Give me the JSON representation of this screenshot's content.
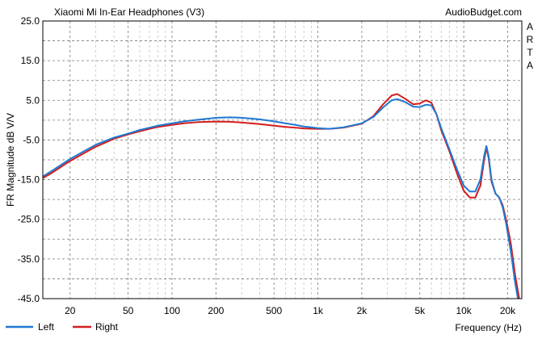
{
  "chart_data": {
    "type": "line",
    "title": "Xiaomi Mi In-Ear Headphones (V3)",
    "watermark": "AudioBudget.com",
    "side_label": [
      "A",
      "R",
      "T",
      "A"
    ],
    "xlabel": "Frequency (Hz)",
    "ylabel": "FR Magnitude dB V/V",
    "x_scale": "log",
    "xlim": [
      13,
      25000
    ],
    "ylim": [
      -45,
      25
    ],
    "grid": true,
    "legend_position": "bottom-left",
    "x_ticks": [
      {
        "value": 20,
        "label": "20"
      },
      {
        "value": 50,
        "label": "50"
      },
      {
        "value": 100,
        "label": "100"
      },
      {
        "value": 200,
        "label": "200"
      },
      {
        "value": 500,
        "label": "500"
      },
      {
        "value": 1000,
        "label": "1k"
      },
      {
        "value": 2000,
        "label": "2k"
      },
      {
        "value": 5000,
        "label": "5k"
      },
      {
        "value": 10000,
        "label": "10k"
      },
      {
        "value": 20000,
        "label": "20k"
      }
    ],
    "y_ticks": [
      {
        "value": 25,
        "label": "25.0"
      },
      {
        "value": 15,
        "label": "15.0"
      },
      {
        "value": 5,
        "label": "5.0"
      },
      {
        "value": -5,
        "label": "-5.0"
      },
      {
        "value": -15,
        "label": "-15.0"
      },
      {
        "value": -25,
        "label": "-25.0"
      },
      {
        "value": -35,
        "label": "-35.0"
      },
      {
        "value": -45,
        "label": "-45.0"
      }
    ],
    "colors": {
      "left": "#1e78d2",
      "right": "#d41c1c",
      "background": "#ffffff",
      "grid": "#808080"
    },
    "series": [
      {
        "name": "Left",
        "color": "#1e78d2",
        "points": [
          [
            13,
            -14.2
          ],
          [
            15,
            -12.8
          ],
          [
            20,
            -9.8
          ],
          [
            25,
            -7.8
          ],
          [
            30,
            -6.2
          ],
          [
            40,
            -4.4
          ],
          [
            50,
            -3.4
          ],
          [
            60,
            -2.5
          ],
          [
            70,
            -1.9
          ],
          [
            80,
            -1.4
          ],
          [
            100,
            -0.8
          ],
          [
            120,
            -0.3
          ],
          [
            150,
            0.1
          ],
          [
            180,
            0.4
          ],
          [
            200,
            0.6
          ],
          [
            250,
            0.7
          ],
          [
            300,
            0.6
          ],
          [
            400,
            0.2
          ],
          [
            500,
            -0.3
          ],
          [
            600,
            -0.8
          ],
          [
            700,
            -1.2
          ],
          [
            800,
            -1.6
          ],
          [
            1000,
            -2.0
          ],
          [
            1200,
            -2.2
          ],
          [
            1500,
            -1.8
          ],
          [
            2000,
            -0.8
          ],
          [
            2400,
            0.8
          ],
          [
            2800,
            3.2
          ],
          [
            3200,
            5.0
          ],
          [
            3500,
            5.3
          ],
          [
            4000,
            4.5
          ],
          [
            4500,
            3.4
          ],
          [
            5000,
            3.3
          ],
          [
            5500,
            3.9
          ],
          [
            6000,
            3.7
          ],
          [
            6500,
            1.5
          ],
          [
            7000,
            -2.0
          ],
          [
            8000,
            -7.5
          ],
          [
            9000,
            -12.5
          ],
          [
            10000,
            -16.5
          ],
          [
            11000,
            -18.0
          ],
          [
            12000,
            -18.0
          ],
          [
            13000,
            -15.0
          ],
          [
            13800,
            -9.0
          ],
          [
            14300,
            -6.5
          ],
          [
            14800,
            -9.0
          ],
          [
            15500,
            -15.0
          ],
          [
            16500,
            -18.5
          ],
          [
            17500,
            -19.5
          ],
          [
            18500,
            -22.0
          ],
          [
            19500,
            -26.0
          ],
          [
            21000,
            -33.0
          ],
          [
            22500,
            -41.0
          ],
          [
            23500,
            -45.0
          ]
        ]
      },
      {
        "name": "Right",
        "color": "#d41c1c",
        "points": [
          [
            13,
            -14.6
          ],
          [
            15,
            -13.3
          ],
          [
            20,
            -10.3
          ],
          [
            25,
            -8.3
          ],
          [
            30,
            -6.7
          ],
          [
            40,
            -4.7
          ],
          [
            50,
            -3.6
          ],
          [
            60,
            -2.8
          ],
          [
            70,
            -2.2
          ],
          [
            80,
            -1.7
          ],
          [
            100,
            -1.2
          ],
          [
            120,
            -0.8
          ],
          [
            150,
            -0.5
          ],
          [
            180,
            -0.4
          ],
          [
            200,
            -0.35
          ],
          [
            250,
            -0.4
          ],
          [
            300,
            -0.6
          ],
          [
            400,
            -1.0
          ],
          [
            500,
            -1.4
          ],
          [
            600,
            -1.7
          ],
          [
            700,
            -1.9
          ],
          [
            800,
            -2.1
          ],
          [
            1000,
            -2.2
          ],
          [
            1200,
            -2.2
          ],
          [
            1500,
            -1.9
          ],
          [
            2000,
            -0.9
          ],
          [
            2400,
            1.0
          ],
          [
            2800,
            4.0
          ],
          [
            3200,
            6.2
          ],
          [
            3500,
            6.6
          ],
          [
            4000,
            5.3
          ],
          [
            4500,
            4.0
          ],
          [
            5000,
            4.2
          ],
          [
            5500,
            5.0
          ],
          [
            6000,
            4.4
          ],
          [
            6500,
            1.5
          ],
          [
            7000,
            -2.5
          ],
          [
            8000,
            -8.0
          ],
          [
            9000,
            -13.5
          ],
          [
            10000,
            -17.8
          ],
          [
            11000,
            -19.5
          ],
          [
            12000,
            -19.5
          ],
          [
            13000,
            -16.5
          ],
          [
            13800,
            -10.0
          ],
          [
            14300,
            -7.0
          ],
          [
            14800,
            -9.5
          ],
          [
            15500,
            -15.5
          ],
          [
            16500,
            -18.5
          ],
          [
            17500,
            -19.5
          ],
          [
            18500,
            -21.5
          ],
          [
            19500,
            -25.0
          ],
          [
            21000,
            -31.0
          ],
          [
            22500,
            -39.0
          ],
          [
            24000,
            -45.0
          ]
        ]
      }
    ]
  }
}
